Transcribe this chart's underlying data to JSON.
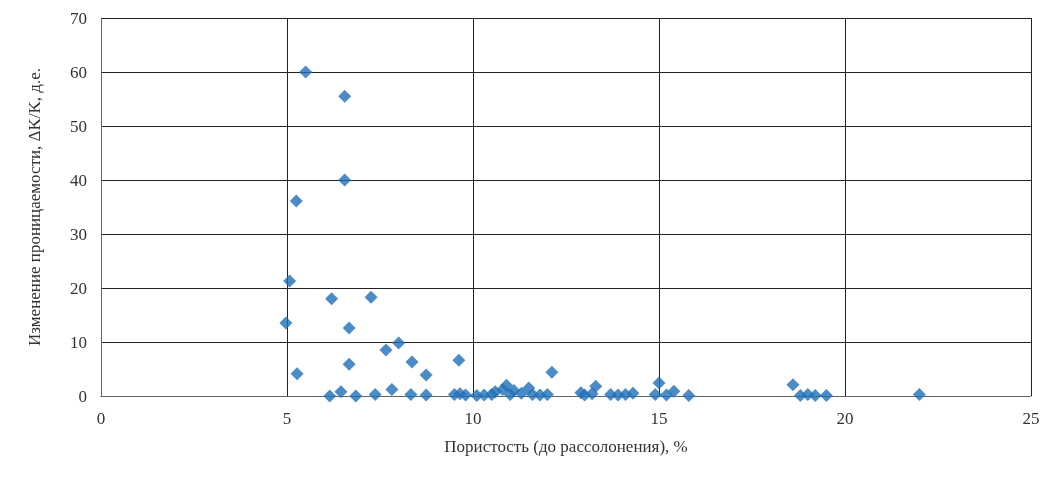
{
  "chart_data": {
    "type": "scatter",
    "xlabel": "Пористость (до рассолонения), %",
    "ylabel": "Изменение проницаемости, ΔK/K, д.е.",
    "x": [
      5.5,
      6.55,
      6.55,
      5.25,
      5.07,
      4.97,
      5.27,
      6.2,
      7.26,
      6.67,
      6.67,
      7.66,
      8.0,
      8.36,
      8.74,
      9.62,
      12.12,
      6.15,
      6.45,
      6.85,
      7.37,
      7.82,
      8.33,
      8.74,
      9.5,
      9.65,
      9.8,
      10.1,
      10.3,
      10.5,
      10.6,
      10.8,
      10.9,
      11.0,
      11.1,
      11.3,
      11.5,
      11.6,
      11.8,
      12.0,
      12.9,
      13.0,
      13.2,
      13.3,
      13.7,
      13.9,
      14.1,
      14.3,
      14.9,
      15.0,
      15.2,
      15.4,
      15.8,
      18.6,
      18.8,
      19.0,
      19.2,
      19.5,
      22.0
    ],
    "series": [
      {
        "color": "#1f6fb8",
        "values": [
          60,
          55.5,
          40,
          36.1,
          21.3,
          13.5,
          4.1,
          18,
          18.3,
          12.6,
          5.9,
          8.5,
          9.8,
          6.3,
          3.9,
          6.6,
          4.4,
          0,
          0.8,
          0,
          0.3,
          1.2,
          0.3,
          0.2,
          0.3,
          0.4,
          0.2,
          0.1,
          0.2,
          0.3,
          0.8,
          1.2,
          2.0,
          0.3,
          1.0,
          0.5,
          1.5,
          0.3,
          0.2,
          0.3,
          0.6,
          0.2,
          0.4,
          1.8,
          0.3,
          0.2,
          0.3,
          0.5,
          0.3,
          2.4,
          0.2,
          0.9,
          0.1,
          2.1,
          0.1,
          0.3,
          0.1,
          0.1,
          0.3
        ]
      }
    ],
    "xlim": [
      0,
      25
    ],
    "xticks": [
      0,
      5,
      10,
      15,
      20,
      25
    ],
    "ylim": [
      0,
      70
    ],
    "yticks": [
      0,
      10,
      20,
      30,
      40,
      50,
      60,
      70
    ],
    "grid": true,
    "marker": "diamond"
  }
}
